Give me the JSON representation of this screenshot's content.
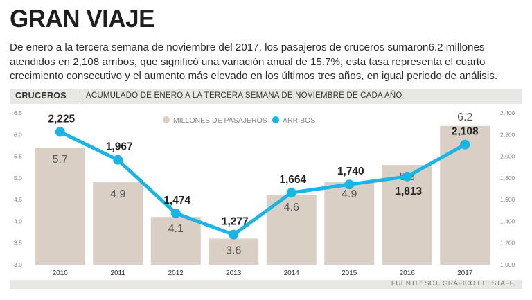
{
  "title": "GRAN VIAJE",
  "description": "De enero a la tercera semana de noviembre del 2017, los pasajeros de cruceros sumaron6.2 millones atendidos en 2,108 arribos, que significó una variación anual de 15.7%; esta tasa representa el cuarto crecimiento consecutivo y el aumento más elevado en los últimos tres años, en igual periodo de análisis.",
  "section_label": "CRUCEROS",
  "section_subtitle": "ACUMULADO DE ENERO A LA TERCERA SEMANA DE NOVIEMBRE DE CADA AÑO",
  "source": "FUENTE: SCT. GRÁFICO EE: STAFF.",
  "colors": {
    "bar": "#d9cfc5",
    "line": "#19b5e4",
    "background_band": "#e9e7e3"
  },
  "chart_data": {
    "type": "bar",
    "categories": [
      "2010",
      "2011",
      "2012",
      "2013",
      "2014",
      "2015",
      "2016",
      "2017"
    ],
    "series": [
      {
        "name": "MILLONES DE PASAJEROS",
        "type": "bar",
        "axis": "left",
        "values": [
          5.7,
          4.9,
          4.1,
          3.6,
          4.6,
          4.9,
          5.3,
          6.2
        ],
        "labels": [
          "5.7",
          "4.9",
          "4.1",
          "3.6",
          "4.6",
          "4.9",
          "5.3",
          "6.2"
        ]
      },
      {
        "name": "ARRIBOS",
        "type": "line",
        "axis": "right",
        "values": [
          2225,
          1967,
          1474,
          1277,
          1664,
          1740,
          1813,
          2108
        ],
        "labels": [
          "2,225",
          "1,967",
          "1,474",
          "1,277",
          "1,664",
          "1,740",
          "1,813",
          "2,108"
        ]
      }
    ],
    "y_left": {
      "ylim": [
        3.0,
        6.5
      ],
      "ticks": [
        "3.0",
        "3.5",
        "4.0",
        "4.5",
        "5.0",
        "5.5",
        "6.0",
        "6.5"
      ]
    },
    "y_right": {
      "ylim": [
        1000,
        2400
      ],
      "ticks": [
        "1,000",
        "1,200",
        "1,400",
        "1,600",
        "1,800",
        "2,000",
        "2,200",
        "2,400"
      ]
    },
    "legend_position": "top-center",
    "grid": false
  }
}
